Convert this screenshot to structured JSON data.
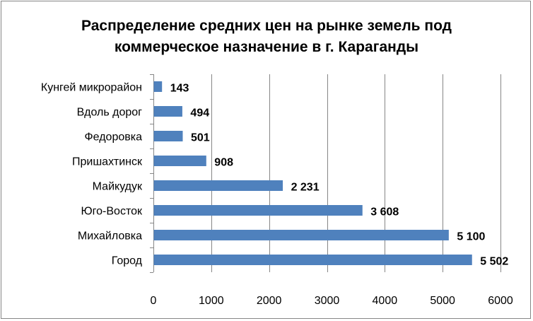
{
  "chart_data": {
    "type": "bar",
    "orientation": "horizontal",
    "title_lines": [
      "Распределение средних цен на рынке земель под",
      "коммерческое назначение в г. Караганды"
    ],
    "categories": [
      "Кунгей микрорайон",
      "Вдоль дорог",
      "Федоровка",
      "Пришахтинск",
      "Майкудук",
      "Юго-Восток",
      "Михайловка",
      "Город"
    ],
    "values": [
      143,
      494,
      501,
      908,
      2231,
      3608,
      5100,
      5502
    ],
    "data_labels": [
      "143",
      "494",
      "501",
      "908",
      "2 231",
      "3 608",
      "5 100",
      "5 502"
    ],
    "xlim": [
      0,
      6000
    ],
    "x_ticks": [
      0,
      1000,
      2000,
      3000,
      4000,
      5000,
      6000
    ],
    "x_tick_labels": [
      "0",
      "1000",
      "2000",
      "3000",
      "4000",
      "5000",
      "6000"
    ],
    "xlabel": "",
    "ylabel": "",
    "grid": true,
    "legend": "none",
    "bar_color": "#4F81BD",
    "grid_color": "#868686"
  }
}
